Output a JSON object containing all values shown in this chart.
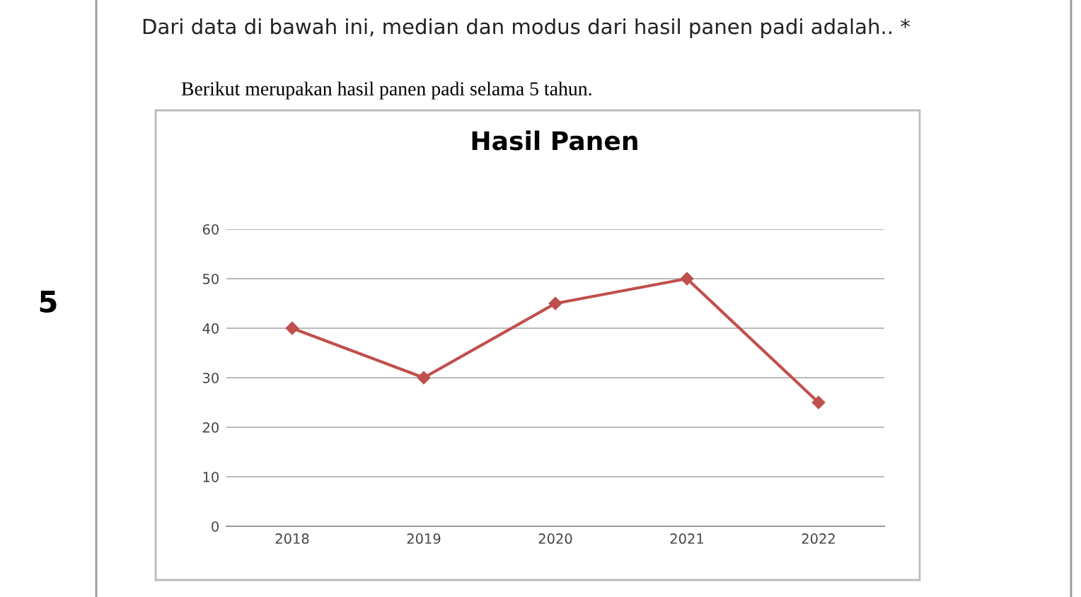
{
  "chart_data": {
    "type": "line",
    "title": "Hasil Panen",
    "subtitle": "Berikut merupakan hasil panen padi selama 5 tahun.",
    "annotations": [
      "5",
      "Dari data di bawah ini, median dan modus dari hasil panen padi adalah.. *"
    ],
    "categories": [
      "2018",
      "2019",
      "2020",
      "2021",
      "2022"
    ],
    "series": [
      {
        "color": "#c0504d",
        "values": [
          40,
          30,
          45,
          50,
          25
        ]
      }
    ],
    "ylim": [
      0,
      60
    ],
    "yticks": [
      0,
      10,
      20,
      30,
      40,
      50,
      60
    ],
    "grid": "y",
    "legend": false,
    "marker": "diamond",
    "line_style": "solid"
  }
}
